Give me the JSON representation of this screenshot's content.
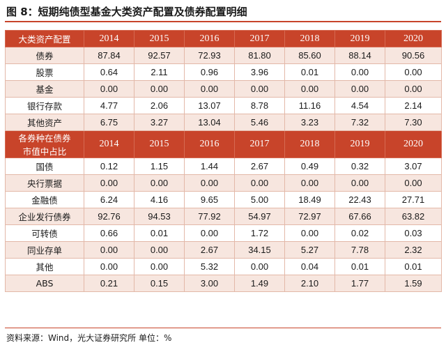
{
  "title": "图 8：短期纯债型基金大类资产配置及债券配置明细",
  "source": "资料来源：Wind，光大证券研究所 单位：%",
  "colors": {
    "header_bg": "#c8442a",
    "shade_bg": "#f7e6df",
    "border": "#e3b8a8"
  },
  "section1": {
    "header": "大类资产配置",
    "years": [
      "2014",
      "2015",
      "2016",
      "2017",
      "2018",
      "2019",
      "2020"
    ],
    "rows": [
      {
        "label": "债券",
        "values": [
          "87.84",
          "92.57",
          "72.93",
          "81.80",
          "85.60",
          "88.14",
          "90.56"
        ]
      },
      {
        "label": "股票",
        "values": [
          "0.64",
          "2.11",
          "0.96",
          "3.96",
          "0.01",
          "0.00",
          "0.00"
        ]
      },
      {
        "label": "基金",
        "values": [
          "0.00",
          "0.00",
          "0.00",
          "0.00",
          "0.00",
          "0.00",
          "0.00"
        ]
      },
      {
        "label": "银行存款",
        "values": [
          "4.77",
          "2.06",
          "13.07",
          "8.78",
          "11.16",
          "4.54",
          "2.14"
        ]
      },
      {
        "label": "其他资产",
        "values": [
          "6.75",
          "3.27",
          "13.04",
          "5.46",
          "3.23",
          "7.32",
          "7.30"
        ]
      }
    ]
  },
  "section2": {
    "header_line1": "各券种在债券",
    "header_line2": "市值中占比",
    "years": [
      "2014",
      "2015",
      "2016",
      "2017",
      "2018",
      "2019",
      "2020"
    ],
    "rows": [
      {
        "label": "国债",
        "values": [
          "0.12",
          "1.15",
          "1.44",
          "2.67",
          "0.49",
          "0.32",
          "3.07"
        ]
      },
      {
        "label": "央行票据",
        "values": [
          "0.00",
          "0.00",
          "0.00",
          "0.00",
          "0.00",
          "0.00",
          "0.00"
        ]
      },
      {
        "label": "金融债",
        "values": [
          "6.24",
          "4.16",
          "9.65",
          "5.00",
          "18.49",
          "22.43",
          "27.71"
        ]
      },
      {
        "label": "企业发行债券",
        "values": [
          "92.76",
          "94.53",
          "77.92",
          "54.97",
          "72.97",
          "67.66",
          "63.82"
        ]
      },
      {
        "label": "可转债",
        "values": [
          "0.66",
          "0.01",
          "0.00",
          "1.72",
          "0.00",
          "0.02",
          "0.03"
        ]
      },
      {
        "label": "同业存单",
        "values": [
          "0.00",
          "0.00",
          "2.67",
          "34.15",
          "5.27",
          "7.78",
          "2.32"
        ]
      },
      {
        "label": "其他",
        "values": [
          "0.00",
          "0.00",
          "5.32",
          "0.00",
          "0.04",
          "0.01",
          "0.01"
        ]
      },
      {
        "label": "ABS",
        "values": [
          "0.21",
          "0.15",
          "3.00",
          "1.49",
          "2.10",
          "1.77",
          "1.59"
        ]
      }
    ]
  }
}
